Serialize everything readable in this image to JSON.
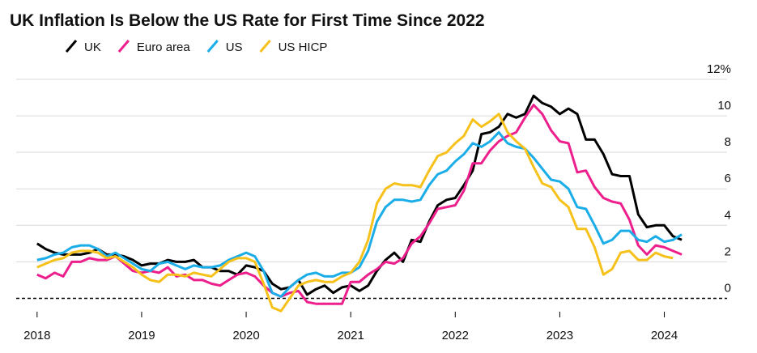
{
  "chart_data": {
    "type": "line",
    "title": "UK Inflation Is Below the US Rate for First Time Since 2022",
    "x": [
      2018.0,
      2018.083,
      2018.167,
      2018.25,
      2018.333,
      2018.417,
      2018.5,
      2018.583,
      2018.667,
      2018.75,
      2018.833,
      2018.917,
      2019.0,
      2019.083,
      2019.167,
      2019.25,
      2019.333,
      2019.417,
      2019.5,
      2019.583,
      2019.667,
      2019.75,
      2019.833,
      2019.917,
      2020.0,
      2020.083,
      2020.167,
      2020.25,
      2020.333,
      2020.417,
      2020.5,
      2020.583,
      2020.667,
      2020.75,
      2020.833,
      2020.917,
      2021.0,
      2021.083,
      2021.167,
      2021.25,
      2021.333,
      2021.417,
      2021.5,
      2021.583,
      2021.667,
      2021.75,
      2021.833,
      2021.917,
      2022.0,
      2022.083,
      2022.167,
      2022.25,
      2022.333,
      2022.417,
      2022.5,
      2022.583,
      2022.667,
      2022.75,
      2022.833,
      2022.917,
      2023.0,
      2023.083,
      2023.167,
      2023.25,
      2023.333,
      2023.417,
      2023.5,
      2023.583,
      2023.667,
      2023.75,
      2023.833,
      2023.917,
      2024.0,
      2024.083,
      2024.167
    ],
    "series": [
      {
        "name": "UK",
        "color": "#000000",
        "values": [
          3.0,
          2.7,
          2.5,
          2.4,
          2.4,
          2.4,
          2.5,
          2.7,
          2.4,
          2.4,
          2.3,
          2.1,
          1.8,
          1.9,
          1.9,
          2.1,
          2.0,
          2.0,
          2.1,
          1.7,
          1.7,
          1.5,
          1.5,
          1.3,
          1.8,
          1.7,
          1.5,
          0.8,
          0.5,
          0.6,
          1.0,
          0.2,
          0.5,
          0.7,
          0.3,
          0.6,
          0.7,
          0.4,
          0.7,
          1.5,
          2.1,
          2.5,
          2.0,
          3.2,
          3.1,
          4.2,
          5.1,
          5.4,
          5.5,
          6.2,
          7.0,
          9.0,
          9.1,
          9.4,
          10.1,
          9.9,
          10.1,
          11.1,
          10.7,
          10.5,
          10.1,
          10.4,
          10.1,
          8.7,
          8.7,
          7.9,
          6.8,
          6.7,
          6.7,
          4.6,
          3.9,
          4.0,
          4.0,
          3.4,
          3.2
        ]
      },
      {
        "name": "Euro area",
        "color": "#ec1f8c",
        "values": [
          1.3,
          1.1,
          1.4,
          1.2,
          2.0,
          2.0,
          2.2,
          2.1,
          2.1,
          2.3,
          1.9,
          1.5,
          1.4,
          1.5,
          1.4,
          1.7,
          1.2,
          1.3,
          1.0,
          1.0,
          0.8,
          0.7,
          1.0,
          1.3,
          1.4,
          1.2,
          0.7,
          0.3,
          0.1,
          0.3,
          0.4,
          -0.2,
          -0.3,
          -0.3,
          -0.3,
          -0.3,
          0.9,
          0.9,
          1.3,
          1.6,
          2.0,
          1.9,
          2.2,
          3.0,
          3.4,
          4.1,
          4.9,
          5.0,
          5.1,
          5.9,
          7.4,
          7.4,
          8.1,
          8.6,
          8.9,
          9.1,
          9.9,
          10.6,
          10.1,
          9.2,
          8.6,
          8.5,
          6.9,
          7.0,
          6.1,
          5.5,
          5.3,
          5.2,
          4.3,
          2.9,
          2.4,
          2.9,
          2.8,
          2.6,
          2.4
        ]
      },
      {
        "name": "US",
        "color": "#1bade8",
        "values": [
          2.1,
          2.2,
          2.4,
          2.5,
          2.8,
          2.9,
          2.9,
          2.7,
          2.3,
          2.5,
          2.2,
          1.9,
          1.6,
          1.5,
          1.9,
          2.0,
          1.8,
          1.6,
          1.8,
          1.7,
          1.7,
          1.8,
          2.1,
          2.3,
          2.5,
          2.3,
          1.5,
          0.3,
          0.1,
          0.6,
          1.0,
          1.3,
          1.4,
          1.2,
          1.2,
          1.4,
          1.4,
          1.7,
          2.6,
          4.2,
          5.0,
          5.4,
          5.4,
          5.3,
          5.4,
          6.2,
          6.8,
          7.0,
          7.5,
          7.9,
          8.5,
          8.3,
          8.6,
          9.1,
          8.5,
          8.3,
          8.2,
          7.7,
          7.1,
          6.5,
          6.4,
          6.0,
          5.0,
          4.9,
          4.0,
          3.0,
          3.2,
          3.7,
          3.7,
          3.2,
          3.1,
          3.4,
          3.1,
          3.2,
          3.5
        ]
      },
      {
        "name": "US HICP",
        "color": "#f6c11a",
        "values": [
          1.7,
          1.9,
          2.1,
          2.2,
          2.5,
          2.6,
          2.6,
          2.5,
          2.2,
          2.3,
          2.0,
          1.7,
          1.3,
          1.0,
          0.9,
          1.3,
          1.3,
          1.2,
          1.4,
          1.3,
          1.2,
          1.6,
          2.0,
          2.2,
          2.2,
          2.0,
          0.8,
          -0.5,
          -0.7,
          0.0,
          0.7,
          0.9,
          1.0,
          0.9,
          0.9,
          1.2,
          1.4,
          2.0,
          3.2,
          5.2,
          6.0,
          6.3,
          6.2,
          6.2,
          6.1,
          7.0,
          7.8,
          8.0,
          8.5,
          8.9,
          9.8,
          9.4,
          9.7,
          10.1,
          9.1,
          8.6,
          8.2,
          7.2,
          6.3,
          6.1,
          5.4,
          5.0,
          3.8,
          3.8,
          2.8,
          1.3,
          1.6,
          2.5,
          2.6,
          2.1,
          2.1,
          2.5,
          2.3,
          2.2,
          null
        ]
      }
    ],
    "xlim": [
      2017.8,
      2024.6
    ],
    "xticks": [
      2018,
      2019,
      2020,
      2021,
      2022,
      2023,
      2024
    ],
    "ylim": [
      -1,
      12
    ],
    "yticks": [
      0,
      2,
      4,
      6,
      8,
      10,
      {
        "value": 12,
        "label": "12%"
      }
    ],
    "grid": true
  }
}
